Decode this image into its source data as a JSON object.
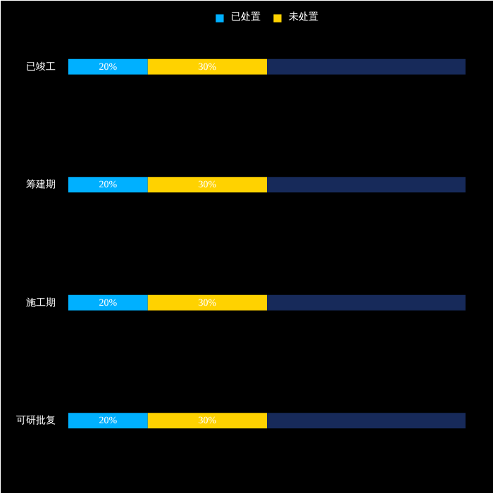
{
  "chart_data": {
    "type": "bar",
    "orientation": "horizontal",
    "stacked": true,
    "legend": "top",
    "grid": false,
    "tick_labels": "y",
    "categories": [
      "已竣工",
      "筹建期",
      "施工期",
      "可研批复"
    ],
    "series": [
      {
        "name": "已处置",
        "color": "#00b0ff",
        "values": [
          20,
          20,
          20,
          20
        ],
        "value_labels": [
          "20%",
          "20%",
          "20%",
          "20%"
        ]
      },
      {
        "name": "未处置",
        "color": "#ffd200",
        "values": [
          30,
          30,
          30,
          30
        ],
        "value_labels": [
          "30%",
          "30%",
          "30%",
          "30%"
        ]
      },
      {
        "color": "#172a5a",
        "values": [
          50,
          50,
          50,
          50
        ]
      }
    ]
  }
}
